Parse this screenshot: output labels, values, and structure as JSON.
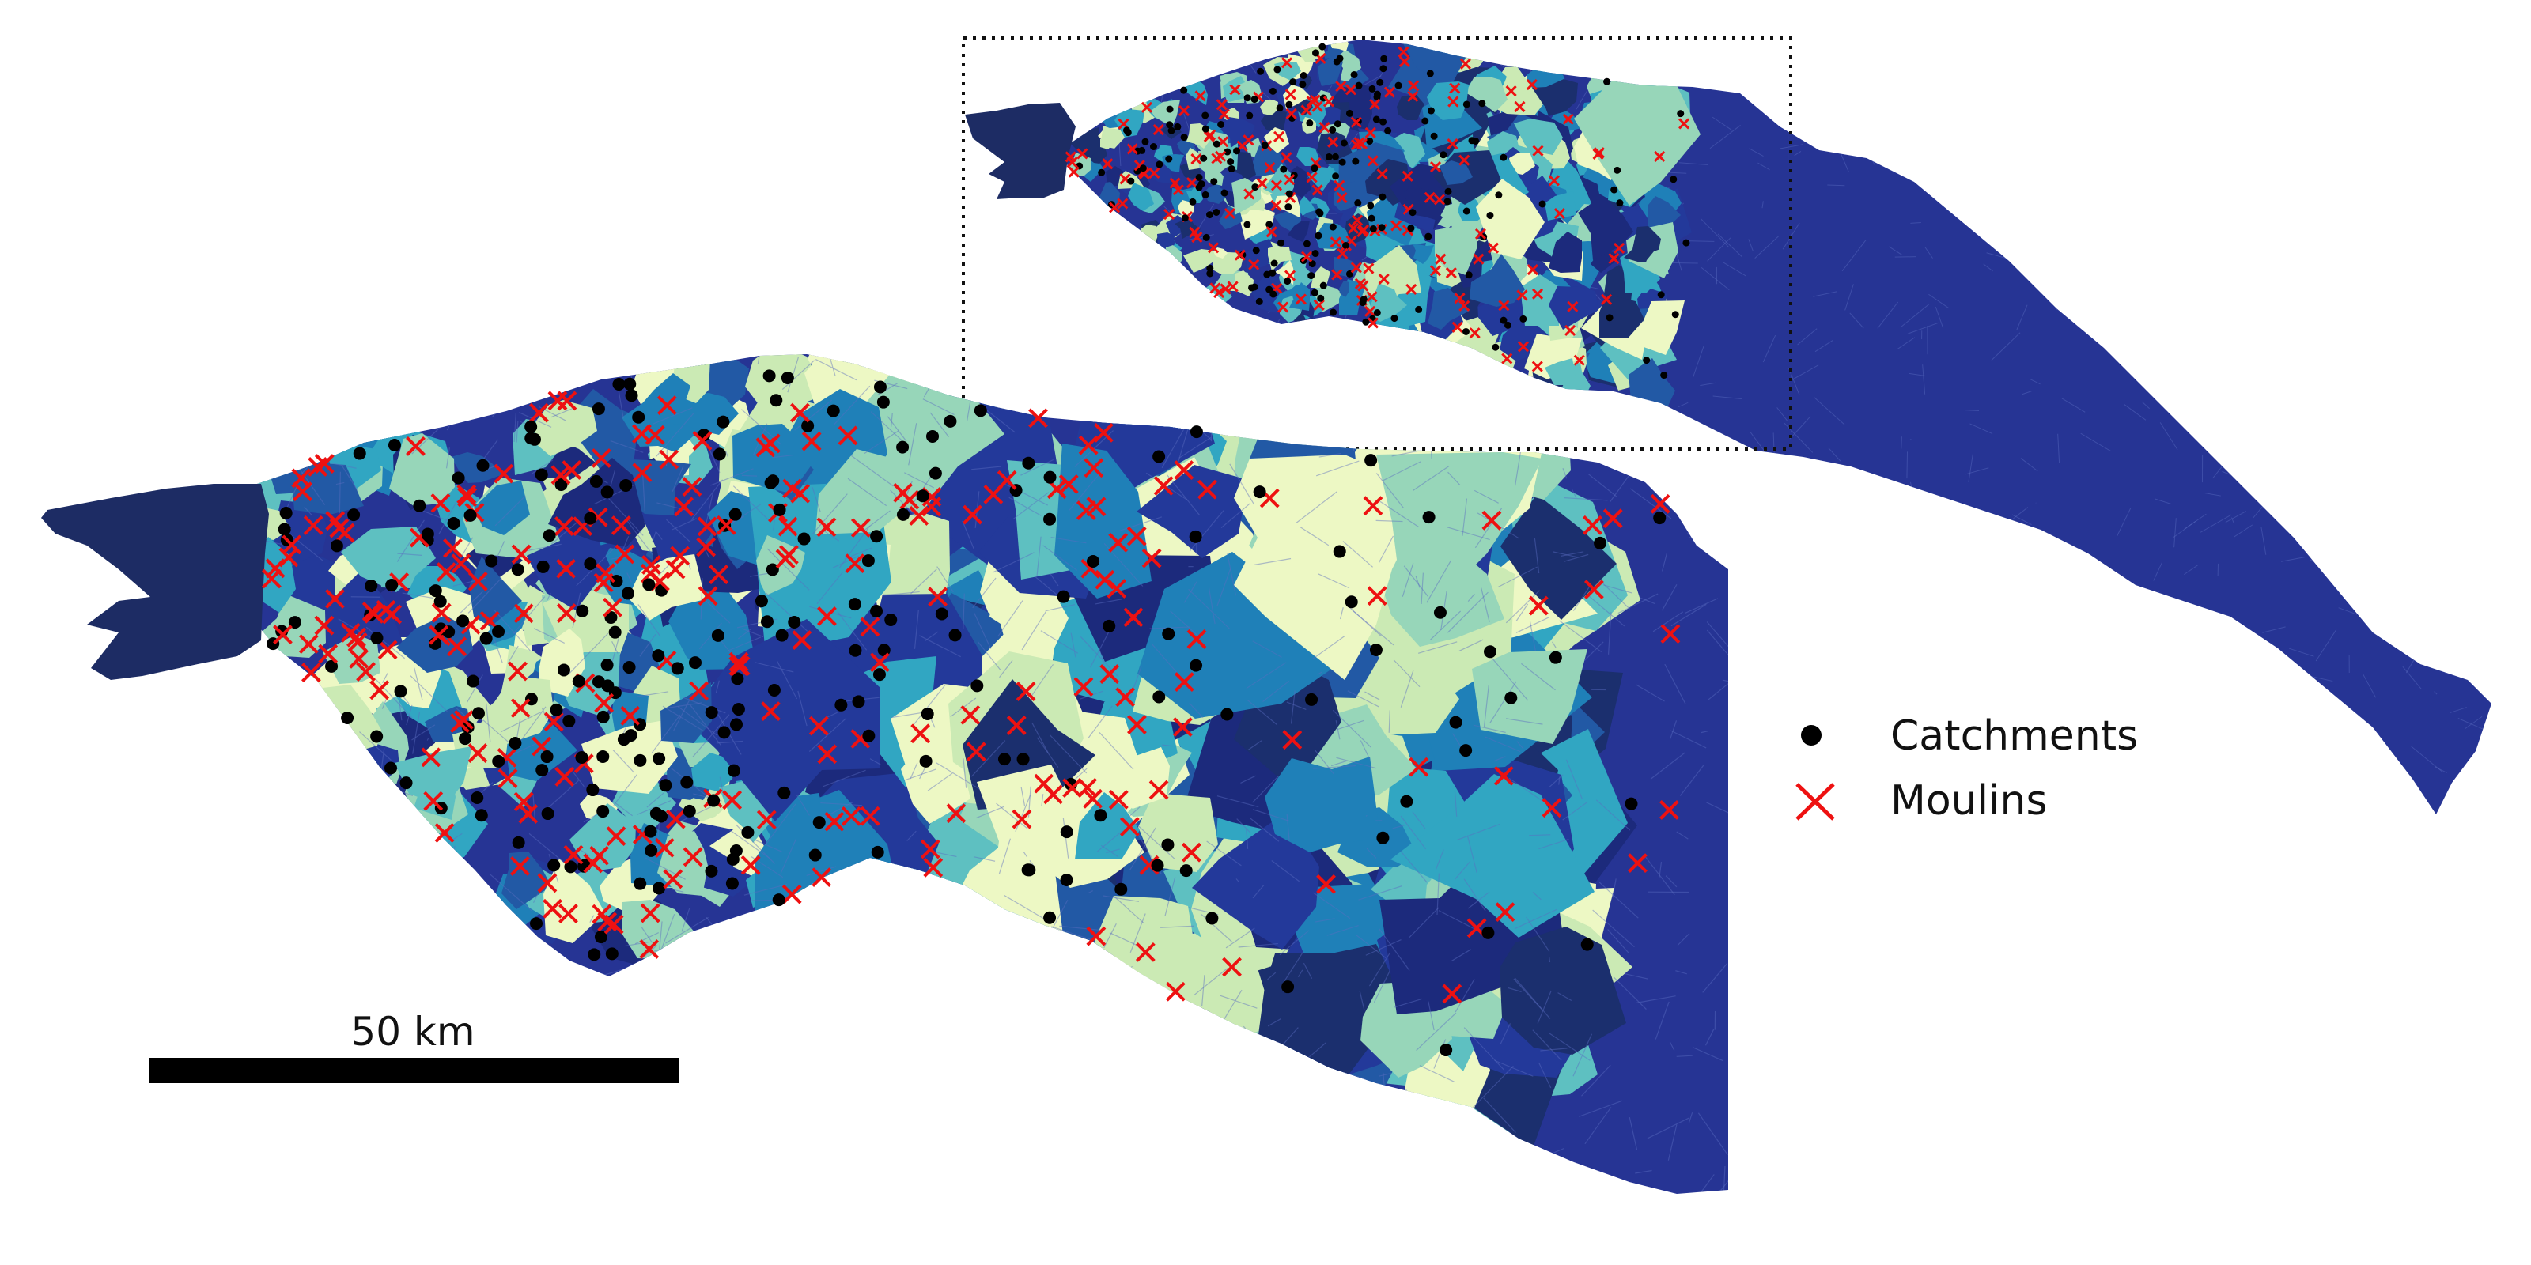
{
  "figure": {
    "legend": {
      "items": [
        {
          "label": "Catchments",
          "marker": "filled-circle",
          "color": "#000000"
        },
        {
          "label": "Moulins",
          "marker": "x-cross",
          "color": "#ee1111"
        }
      ]
    },
    "scale_bar": {
      "label": "50 km",
      "value_km": 50
    },
    "inset": {
      "frame_style": "dotted",
      "frame_color": "#111111"
    }
  },
  "palette": {
    "catchment_fills": [
      "#edf8c4",
      "#cbeab4",
      "#97d6b9",
      "#5ec0c1",
      "#31a6c2",
      "#1f80b8",
      "#2259a5",
      "#23399a",
      "#1c2a7c",
      "#1b2f6e"
    ],
    "outer_ice": "#263494",
    "front_ice": "#1d2c64",
    "mesh_line": "#5a6cc0",
    "catchment_marker": "#000000",
    "moulin_marker": "#ee1111"
  }
}
